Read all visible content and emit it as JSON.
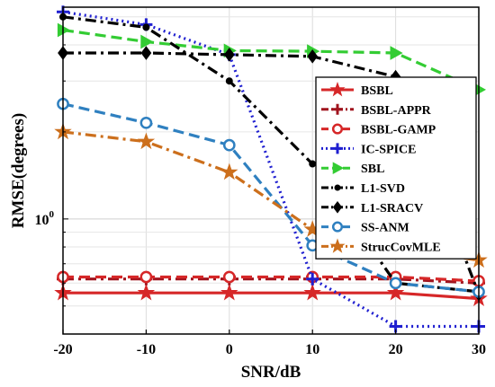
{
  "chart_data": {
    "type": "line",
    "xlabel": "SNR/dB",
    "ylabel": "RMSE(degrees)",
    "yscale": "log",
    "x": [
      -20,
      -10,
      0,
      10,
      20,
      30
    ],
    "xticks": [
      "-20",
      "-10",
      "0",
      "10",
      "20",
      "30"
    ],
    "ytick_labels": [
      {
        "value": 1,
        "label": "10",
        "exponent": "0"
      }
    ],
    "xlim": [
      -20,
      30
    ],
    "ylim": [
      0.4,
      5.4
    ],
    "grid": true,
    "legend_position": "right",
    "series": [
      {
        "name": "BSBL",
        "values": [
          0.555,
          0.555,
          0.555,
          0.555,
          0.555,
          0.53
        ],
        "color": "#d62728",
        "dash": "solid",
        "marker": "star"
      },
      {
        "name": "BSBL-APPR",
        "values": [
          0.62,
          0.62,
          0.62,
          0.62,
          0.62,
          0.6
        ],
        "color": "#a0141e",
        "dash": "dashdot",
        "marker": "plus"
      },
      {
        "name": "BSBL-GAMP",
        "values": [
          0.63,
          0.63,
          0.63,
          0.63,
          0.63,
          0.61
        ],
        "color": "#d62728",
        "dash": "dashed",
        "marker": "circle"
      },
      {
        "name": "IC-SPICE",
        "values": [
          5.2,
          4.7,
          3.7,
          0.62,
          0.425,
          0.425
        ],
        "color": "#1f1fd0",
        "dash": "dotted",
        "marker": "plus"
      },
      {
        "name": "SBL",
        "values": [
          4.5,
          4.1,
          3.82,
          3.8,
          3.75,
          2.8
        ],
        "color": "#33cc33",
        "dash": "dashed",
        "marker": "triangle-right"
      },
      {
        "name": "L1-SVD",
        "values": [
          5.0,
          4.6,
          3.0,
          1.55,
          0.6,
          0.56
        ],
        "color": "#000000",
        "dash": "dashdot",
        "marker": "dot"
      },
      {
        "name": "L1-SRACV",
        "values": [
          3.75,
          3.75,
          3.7,
          3.65,
          3.1,
          0.55
        ],
        "color": "#000000",
        "dash": "dashdot",
        "marker": "diamond"
      },
      {
        "name": "SS-ANM",
        "values": [
          2.5,
          2.15,
          1.8,
          0.81,
          0.6,
          0.56
        ],
        "color": "#2f80c0",
        "dash": "dashed",
        "marker": "circle"
      },
      {
        "name": "StrucCovMLE",
        "values": [
          2.0,
          1.85,
          1.45,
          0.92,
          0.79,
          0.72
        ],
        "color": "#cc6f1c",
        "dash": "dashdot",
        "marker": "star"
      }
    ]
  }
}
